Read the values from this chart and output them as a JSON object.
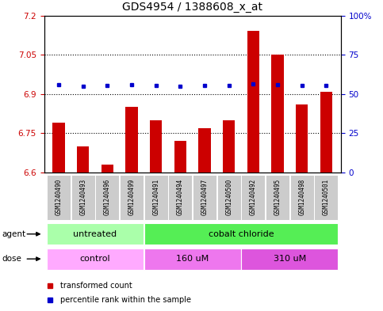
{
  "title": "GDS4954 / 1388608_x_at",
  "samples": [
    "GSM1240490",
    "GSM1240493",
    "GSM1240496",
    "GSM1240499",
    "GSM1240491",
    "GSM1240494",
    "GSM1240497",
    "GSM1240500",
    "GSM1240492",
    "GSM1240495",
    "GSM1240498",
    "GSM1240501"
  ],
  "bar_values": [
    6.79,
    6.7,
    6.63,
    6.85,
    6.8,
    6.72,
    6.77,
    6.8,
    7.14,
    7.05,
    6.86,
    6.91
  ],
  "dot_values_left": [
    6.935,
    6.93,
    6.932,
    6.937,
    6.934,
    6.93,
    6.932,
    6.932,
    6.94,
    6.937,
    6.933,
    6.933
  ],
  "bar_color": "#cc0000",
  "dot_color": "#0000cc",
  "ylim_left": [
    6.6,
    7.2
  ],
  "ylim_right": [
    0,
    100
  ],
  "yticks_left": [
    6.6,
    6.75,
    6.9,
    7.05,
    7.2
  ],
  "yticks_right": [
    0,
    25,
    50,
    75,
    100
  ],
  "ytick_labels_left": [
    "6.6",
    "6.75",
    "6.9",
    "7.05",
    "7.2"
  ],
  "ytick_labels_right": [
    "0",
    "25",
    "50",
    "75",
    "100%"
  ],
  "hlines": [
    6.75,
    6.9,
    7.05
  ],
  "agent_groups": [
    {
      "label": "untreated",
      "start": 0,
      "end": 4,
      "color": "#aaffaa"
    },
    {
      "label": "cobalt chloride",
      "start": 4,
      "end": 12,
      "color": "#55ee55"
    }
  ],
  "dose_groups": [
    {
      "label": "control",
      "start": 0,
      "end": 4,
      "color": "#ffaaff"
    },
    {
      "label": "160 uM",
      "start": 4,
      "end": 8,
      "color": "#ee77ee"
    },
    {
      "label": "310 uM",
      "start": 8,
      "end": 12,
      "color": "#dd55dd"
    }
  ],
  "legend_items": [
    {
      "color": "#cc0000",
      "label": "transformed count"
    },
    {
      "color": "#0000cc",
      "label": "percentile rank within the sample"
    }
  ],
  "bar_width": 0.5,
  "ybase": 6.6,
  "title_fontsize": 10,
  "tick_fontsize": 7.5,
  "sample_fontsize": 5.5,
  "group_fontsize": 8,
  "legend_fontsize": 7
}
